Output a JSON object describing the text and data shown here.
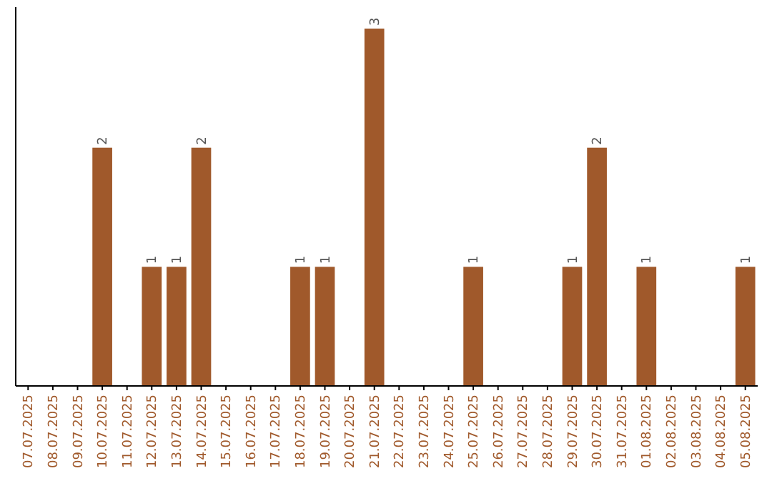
{
  "chart_data": {
    "type": "bar",
    "categories": [
      "07.07.2025",
      "08.07.2025",
      "09.07.2025",
      "10.07.2025",
      "11.07.2025",
      "12.07.2025",
      "13.07.2025",
      "14.07.2025",
      "15.07.2025",
      "16.07.2025",
      "17.07.2025",
      "18.07.2025",
      "19.07.2025",
      "20.07.2025",
      "21.07.2025",
      "22.07.2025",
      "23.07.2025",
      "24.07.2025",
      "25.07.2025",
      "26.07.2025",
      "27.07.2025",
      "28.07.2025",
      "29.07.2025",
      "30.07.2025",
      "31.07.2025",
      "01.08.2025",
      "02.08.2025",
      "03.08.2025",
      "04.08.2025",
      "05.08.2025"
    ],
    "values": [
      0,
      0,
      0,
      2,
      0,
      1,
      1,
      2,
      0,
      0,
      0,
      1,
      1,
      0,
      3,
      0,
      0,
      0,
      1,
      0,
      0,
      0,
      1,
      2,
      0,
      1,
      0,
      0,
      0,
      1
    ],
    "value_labels": [
      null,
      null,
      null,
      "2",
      null,
      "1",
      "1",
      "2",
      null,
      null,
      null,
      "1",
      "1",
      null,
      "3",
      null,
      null,
      null,
      "1",
      null,
      null,
      null,
      "1",
      "2",
      null,
      "1",
      null,
      null,
      null,
      "1"
    ],
    "color": "#a0592b",
    "relative": false
  }
}
